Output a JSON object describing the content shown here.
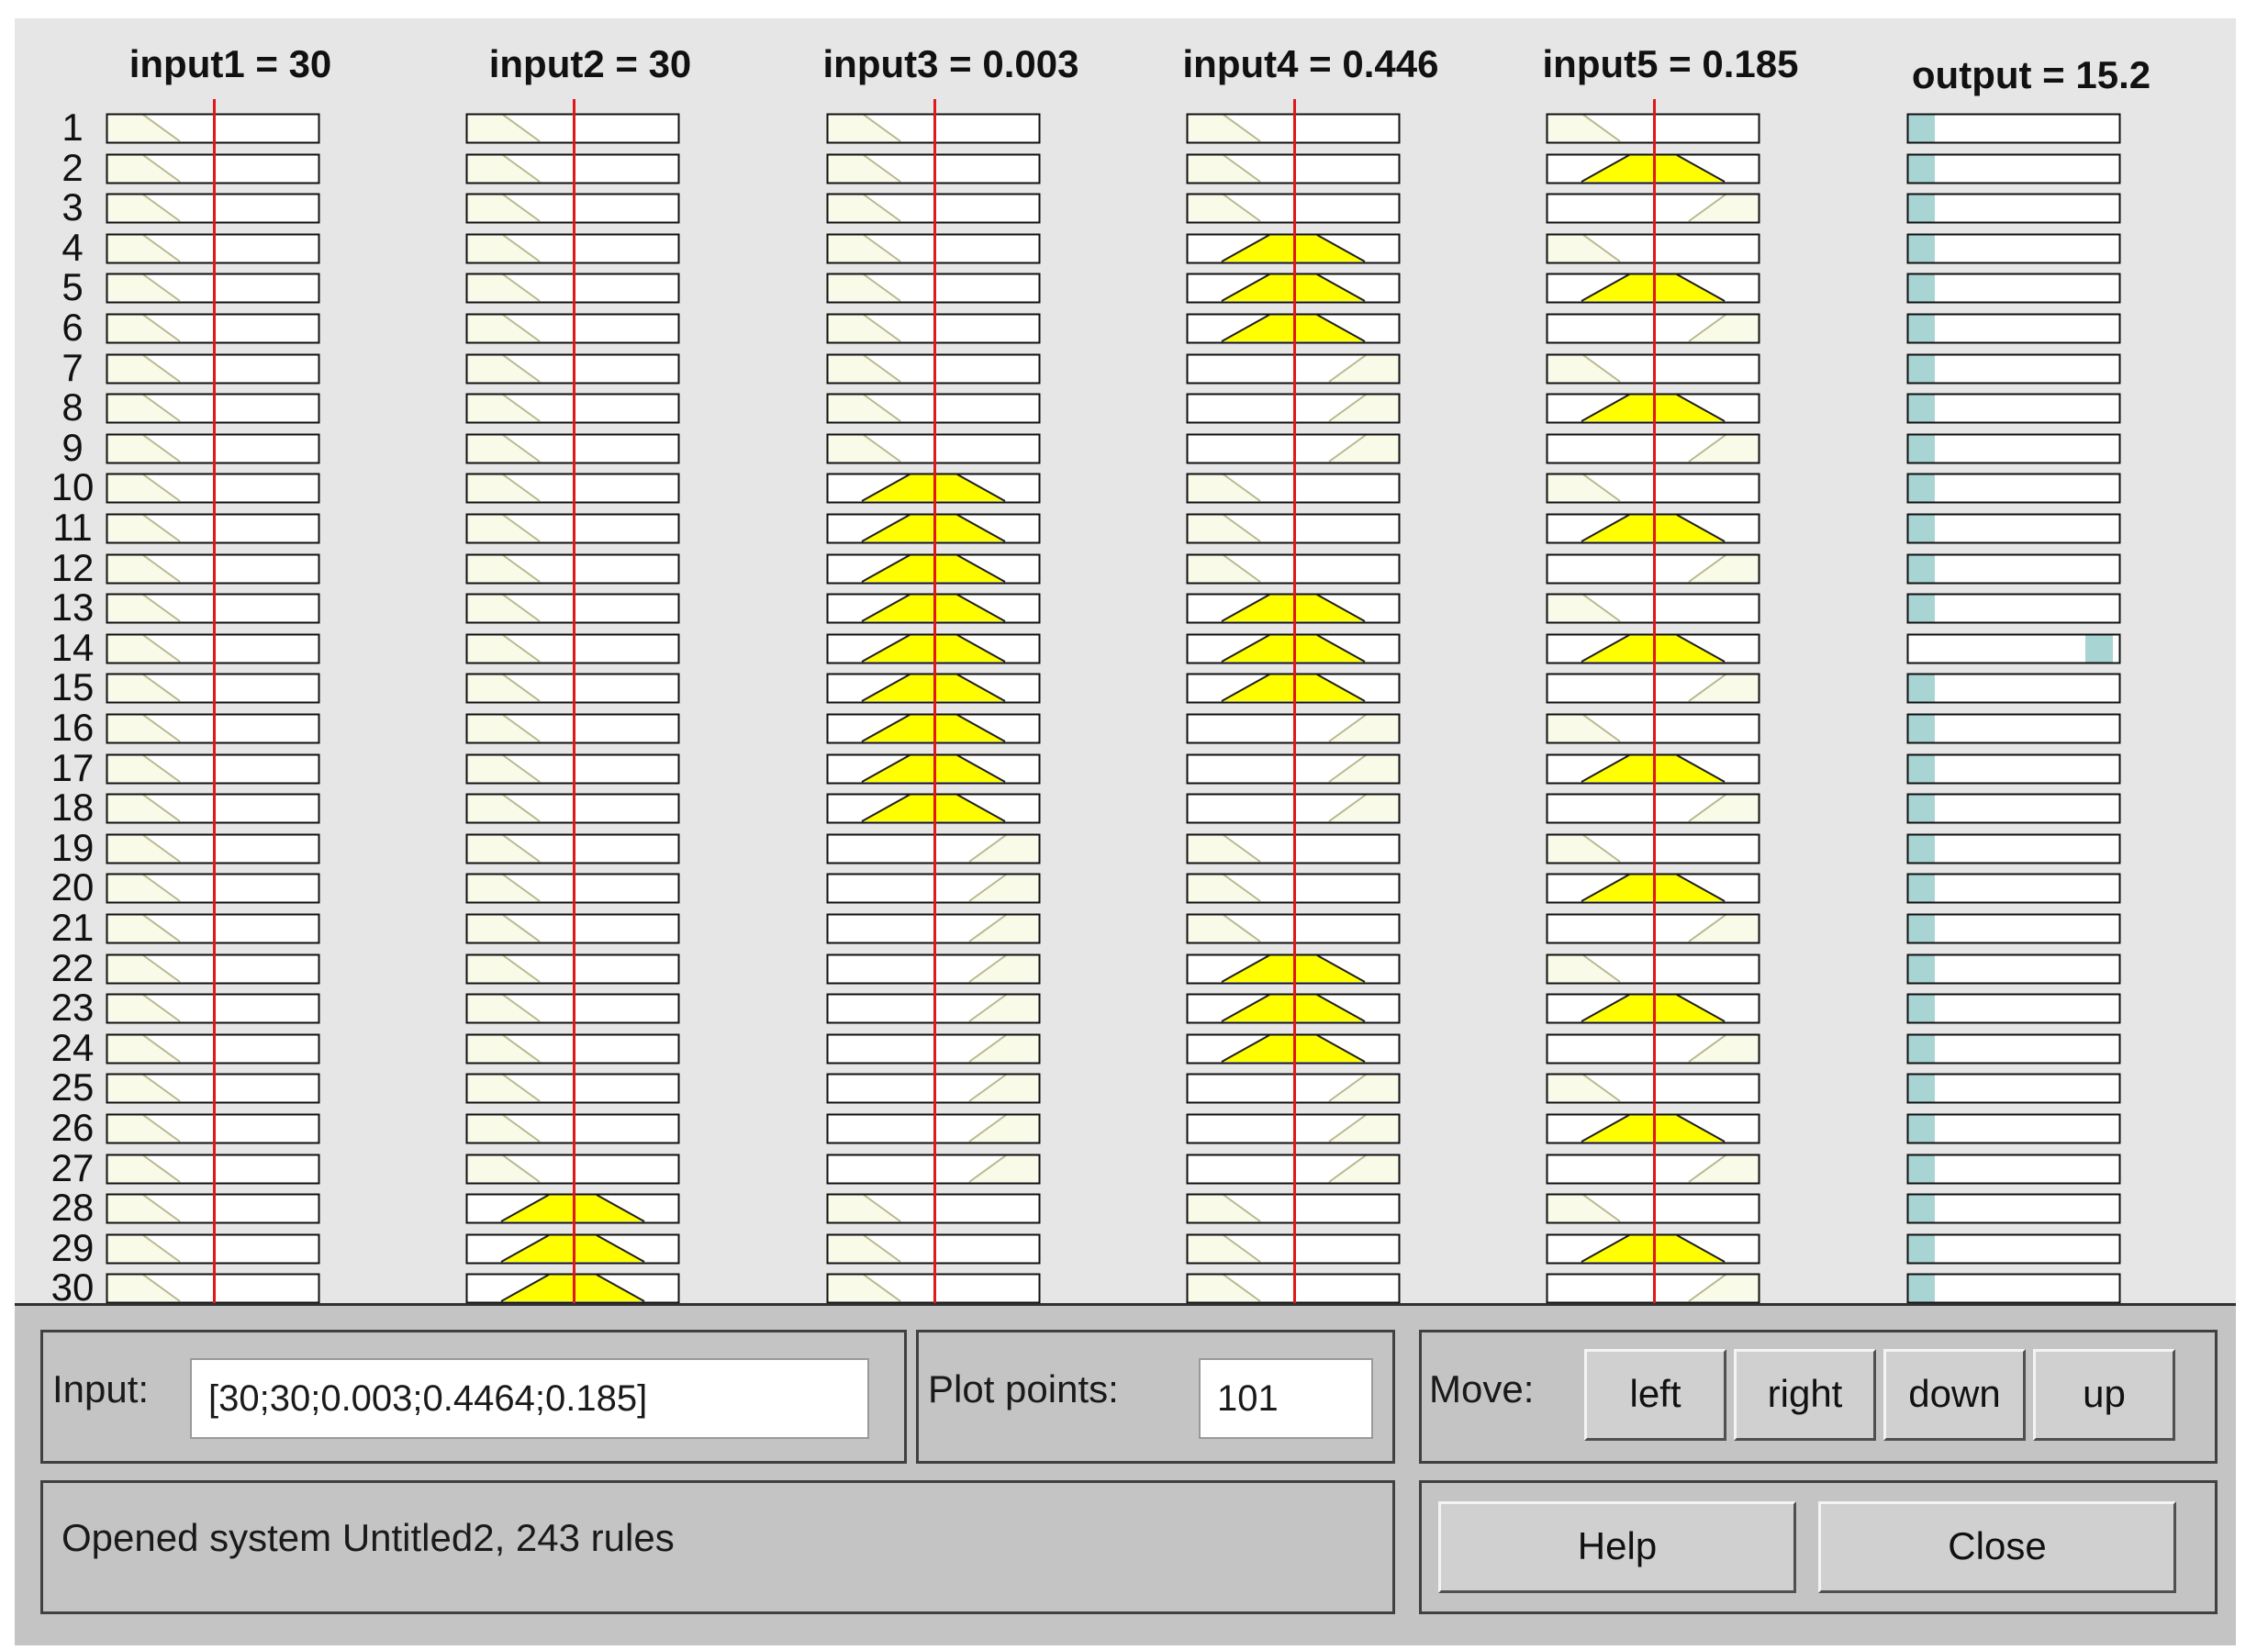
{
  "columns": [
    {
      "title": "input1 = 30"
    },
    {
      "title": "input2 = 30"
    },
    {
      "title": "input3 = 0.003"
    },
    {
      "title": "input4 = 0.446"
    },
    {
      "title": "input5 = 0.185"
    },
    {
      "title": "output = 15.2"
    }
  ],
  "rules": [
    {
      "num": "1",
      "mf": [
        "Z",
        "Z",
        "Z",
        "Z",
        "Z",
        "L"
      ]
    },
    {
      "num": "2",
      "mf": [
        "Z",
        "Z",
        "Z",
        "Z",
        "T",
        "L"
      ]
    },
    {
      "num": "3",
      "mf": [
        "Z",
        "Z",
        "Z",
        "Z",
        "S",
        "L"
      ]
    },
    {
      "num": "4",
      "mf": [
        "Z",
        "Z",
        "Z",
        "T",
        "Z",
        "L"
      ]
    },
    {
      "num": "5",
      "mf": [
        "Z",
        "Z",
        "Z",
        "T",
        "T",
        "L"
      ]
    },
    {
      "num": "6",
      "mf": [
        "Z",
        "Z",
        "Z",
        "T",
        "S",
        "L"
      ]
    },
    {
      "num": "7",
      "mf": [
        "Z",
        "Z",
        "Z",
        "S",
        "Z",
        "L"
      ]
    },
    {
      "num": "8",
      "mf": [
        "Z",
        "Z",
        "Z",
        "S",
        "T",
        "L"
      ]
    },
    {
      "num": "9",
      "mf": [
        "Z",
        "Z",
        "Z",
        "S",
        "S",
        "L"
      ]
    },
    {
      "num": "10",
      "mf": [
        "Z",
        "Z",
        "T",
        "Z",
        "Z",
        "L"
      ]
    },
    {
      "num": "11",
      "mf": [
        "Z",
        "Z",
        "T",
        "Z",
        "T",
        "L"
      ]
    },
    {
      "num": "12",
      "mf": [
        "Z",
        "Z",
        "T",
        "Z",
        "S",
        "L"
      ]
    },
    {
      "num": "13",
      "mf": [
        "Z",
        "Z",
        "T",
        "T",
        "Z",
        "L"
      ]
    },
    {
      "num": "14",
      "mf": [
        "Z",
        "Z",
        "T",
        "T",
        "T",
        "R"
      ]
    },
    {
      "num": "15",
      "mf": [
        "Z",
        "Z",
        "T",
        "T",
        "S",
        "L"
      ]
    },
    {
      "num": "16",
      "mf": [
        "Z",
        "Z",
        "T",
        "S",
        "Z",
        "L"
      ]
    },
    {
      "num": "17",
      "mf": [
        "Z",
        "Z",
        "T",
        "S",
        "T",
        "L"
      ]
    },
    {
      "num": "18",
      "mf": [
        "Z",
        "Z",
        "T",
        "S",
        "S",
        "L"
      ]
    },
    {
      "num": "19",
      "mf": [
        "Z",
        "Z",
        "S",
        "Z",
        "Z",
        "L"
      ]
    },
    {
      "num": "20",
      "mf": [
        "Z",
        "Z",
        "S",
        "Z",
        "T",
        "L"
      ]
    },
    {
      "num": "21",
      "mf": [
        "Z",
        "Z",
        "S",
        "Z",
        "S",
        "L"
      ]
    },
    {
      "num": "22",
      "mf": [
        "Z",
        "Z",
        "S",
        "T",
        "Z",
        "L"
      ]
    },
    {
      "num": "23",
      "mf": [
        "Z",
        "Z",
        "S",
        "T",
        "T",
        "L"
      ]
    },
    {
      "num": "24",
      "mf": [
        "Z",
        "Z",
        "S",
        "T",
        "S",
        "L"
      ]
    },
    {
      "num": "25",
      "mf": [
        "Z",
        "Z",
        "S",
        "S",
        "Z",
        "L"
      ]
    },
    {
      "num": "26",
      "mf": [
        "Z",
        "Z",
        "S",
        "S",
        "T",
        "L"
      ]
    },
    {
      "num": "27",
      "mf": [
        "Z",
        "Z",
        "S",
        "S",
        "S",
        "L"
      ]
    },
    {
      "num": "28",
      "mf": [
        "Z",
        "T",
        "Z",
        "Z",
        "Z",
        "L"
      ]
    },
    {
      "num": "29",
      "mf": [
        "Z",
        "T",
        "Z",
        "Z",
        "T",
        "L"
      ]
    },
    {
      "num": "30",
      "mf": [
        "Z",
        "T",
        "Z",
        "Z",
        "S",
        "L"
      ]
    }
  ],
  "colors": {
    "fill": "#ffff00",
    "indicator_line": "#e01818",
    "output_marker": "#a8d4d4",
    "mf_line": "#b8b890"
  },
  "input_panel": {
    "label": "Input:",
    "value": "[30;30;0.003;0.4464;0.185]"
  },
  "plot_panel": {
    "label": "Plot points:",
    "value": "101"
  },
  "move_panel": {
    "label": "Move:",
    "left": "left",
    "right": "right",
    "down": "down",
    "up": "up"
  },
  "status": {
    "text": "Opened system Untitled2, 243 rules"
  },
  "buttons": {
    "help": "Help",
    "close": "Close"
  }
}
